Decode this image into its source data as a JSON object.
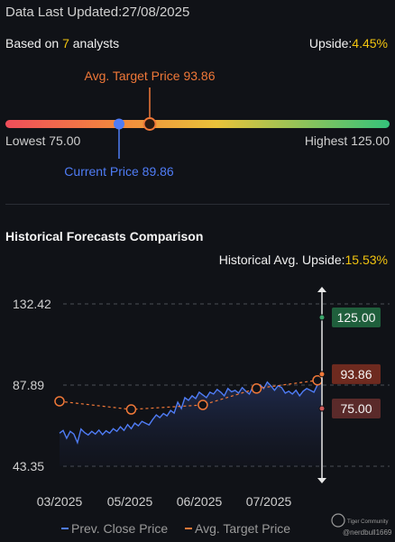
{
  "header": {
    "updated_label": "Data Last Updated:",
    "updated_value": "27/08/2025",
    "based_prefix": "Based on ",
    "analyst_count": "7",
    "based_suffix": " analysts",
    "upside_label": "Upside:",
    "upside_value": "4.45%"
  },
  "range": {
    "avg_target_label": "Avg. Target Price 93.86",
    "lowest_label": "Lowest 75.00",
    "highest_label": "Highest 125.00",
    "current_label": "Current Price 89.86",
    "low": 75.0,
    "high": 125.0,
    "current": 89.86,
    "avg_target": 93.86
  },
  "historical": {
    "title": "Historical Forecasts Comparison",
    "avg_upside_label": "Historical Avg. Upside:",
    "avg_upside_value": "15.53%"
  },
  "chart_data": {
    "type": "line",
    "y_ticks": [
      "132.42",
      "87.89",
      "43.35"
    ],
    "x_ticks": [
      "03/2025",
      "05/2025",
      "06/2025",
      "07/2025"
    ],
    "ylim": [
      43.35,
      132.42
    ],
    "series": [
      {
        "name": "Prev. Close Price",
        "color": "#4f7cf5",
        "x": [
          0,
          1,
          2,
          3,
          4,
          5,
          6,
          7,
          8,
          9,
          10,
          11,
          12,
          13,
          14,
          15,
          16,
          17,
          18,
          19,
          20,
          21,
          22,
          23,
          24,
          25,
          26,
          27,
          28,
          29,
          30,
          31,
          32,
          33,
          34,
          35,
          36,
          37,
          38,
          39,
          40,
          41,
          42,
          43,
          44,
          45,
          46,
          47,
          48,
          49,
          50,
          51,
          52,
          53,
          54,
          55,
          56,
          57,
          58,
          59,
          60,
          61,
          62,
          63,
          64,
          65,
          66,
          67,
          68,
          69,
          70,
          71,
          72,
          73
        ],
        "values": [
          61.5,
          63,
          58.7,
          62.5,
          61,
          56.3,
          63.8,
          61.8,
          60.5,
          62.5,
          61,
          63.2,
          60.7,
          62.8,
          61.5,
          64,
          62.5,
          65,
          63,
          66.2,
          64,
          67,
          65.5,
          68,
          67,
          66,
          69,
          71.5,
          70,
          72.3,
          71,
          74,
          72.5,
          78.5,
          75,
          81,
          79.5,
          82,
          80.5,
          84,
          82.5,
          81,
          84,
          83,
          85.5,
          84,
          82,
          86,
          84.2,
          85,
          83.5,
          86.5,
          84.5,
          83,
          87,
          85.5,
          88,
          86,
          89.5,
          87.5,
          85,
          87.5,
          86.5,
          83.5,
          84.5,
          83,
          85,
          82,
          84.5,
          86,
          85,
          84,
          88,
          89.86
        ]
      },
      {
        "name": "Avg. Target Price",
        "color": "#f07838",
        "x": [
          0,
          20,
          40,
          55,
          72
        ],
        "values": [
          79,
          74.5,
          77,
          86,
          90.5
        ]
      }
    ],
    "end_markers": [
      {
        "label": "125.00",
        "value": 125.0,
        "color": "#1f5f3c"
      },
      {
        "label": "93.86",
        "value": 93.86,
        "color": "#6e2a1f"
      },
      {
        "label": "75.00",
        "value": 75.0,
        "color": "#5a2a2a"
      }
    ],
    "legend": [
      "Prev. Close Price",
      "Avg. Target Price"
    ],
    "legend_position": "bottom"
  },
  "watermark": {
    "brand": "Tiger Community",
    "user": "@nerdbull1669"
  }
}
